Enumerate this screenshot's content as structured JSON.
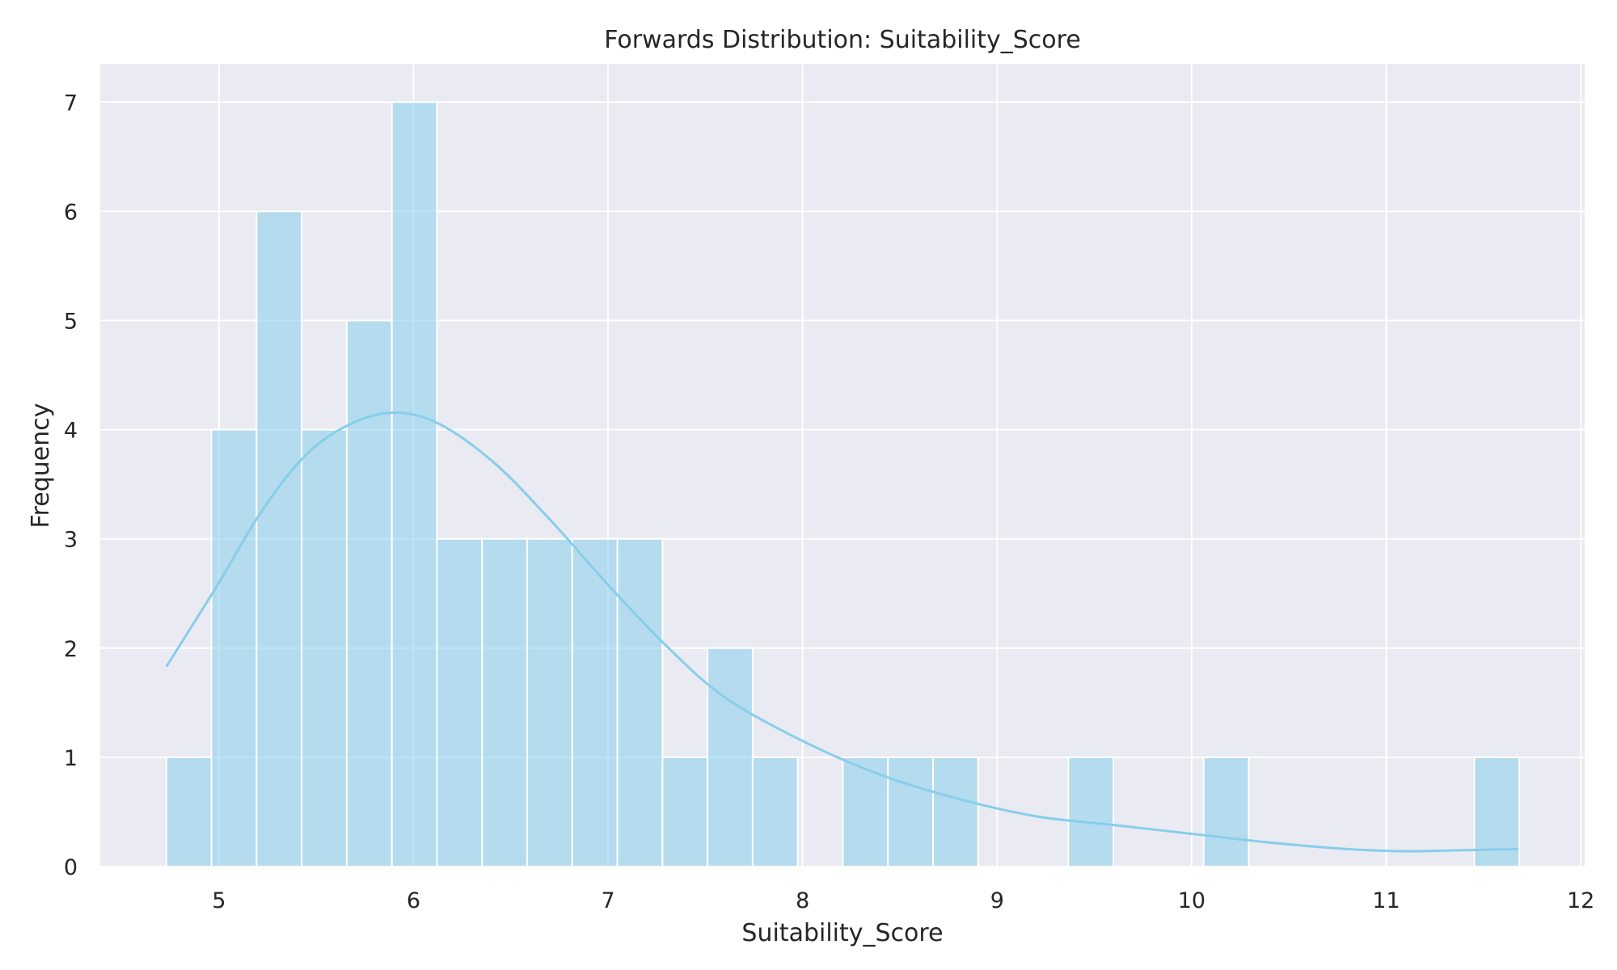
{
  "chart_data": {
    "type": "bar",
    "title": "Forwards Distribution: Suitability_Score",
    "xlabel": "Suitability_Score",
    "ylabel": "Frequency",
    "xlim": [
      4.39,
      12.02
    ],
    "ylim": [
      0,
      7.35
    ],
    "xticks": [
      5,
      6,
      7,
      8,
      9,
      10,
      11,
      12
    ],
    "yticks": [
      0,
      1,
      2,
      3,
      4,
      5,
      6,
      7
    ],
    "grid": true,
    "bin_start": 4.73,
    "bin_width": 0.2318,
    "bin_counts": [
      1,
      4,
      6,
      4,
      5,
      7,
      3,
      3,
      3,
      3,
      3,
      1,
      2,
      1,
      0,
      1,
      1,
      1,
      0,
      0,
      1,
      0,
      0,
      1,
      0,
      0,
      0,
      0,
      0,
      1
    ],
    "kde": {
      "x": [
        4.73,
        5.0,
        5.2,
        5.4,
        5.6,
        5.85,
        6.1,
        6.4,
        6.7,
        7.0,
        7.3,
        7.6,
        8.0,
        8.4,
        8.8,
        9.2,
        9.6,
        10.0,
        10.4,
        10.8,
        11.1,
        11.4,
        11.68
      ],
      "y": [
        1.83,
        2.6,
        3.2,
        3.68,
        3.98,
        4.15,
        4.08,
        3.72,
        3.18,
        2.58,
        2.02,
        1.55,
        1.15,
        0.84,
        0.62,
        0.46,
        0.38,
        0.3,
        0.22,
        0.16,
        0.14,
        0.15,
        0.16
      ]
    },
    "colors": {
      "bar_fill": "#87ceeb",
      "line": "#87ceeb",
      "plot_background": "#eaeaf2",
      "grid": "#ffffff"
    }
  }
}
